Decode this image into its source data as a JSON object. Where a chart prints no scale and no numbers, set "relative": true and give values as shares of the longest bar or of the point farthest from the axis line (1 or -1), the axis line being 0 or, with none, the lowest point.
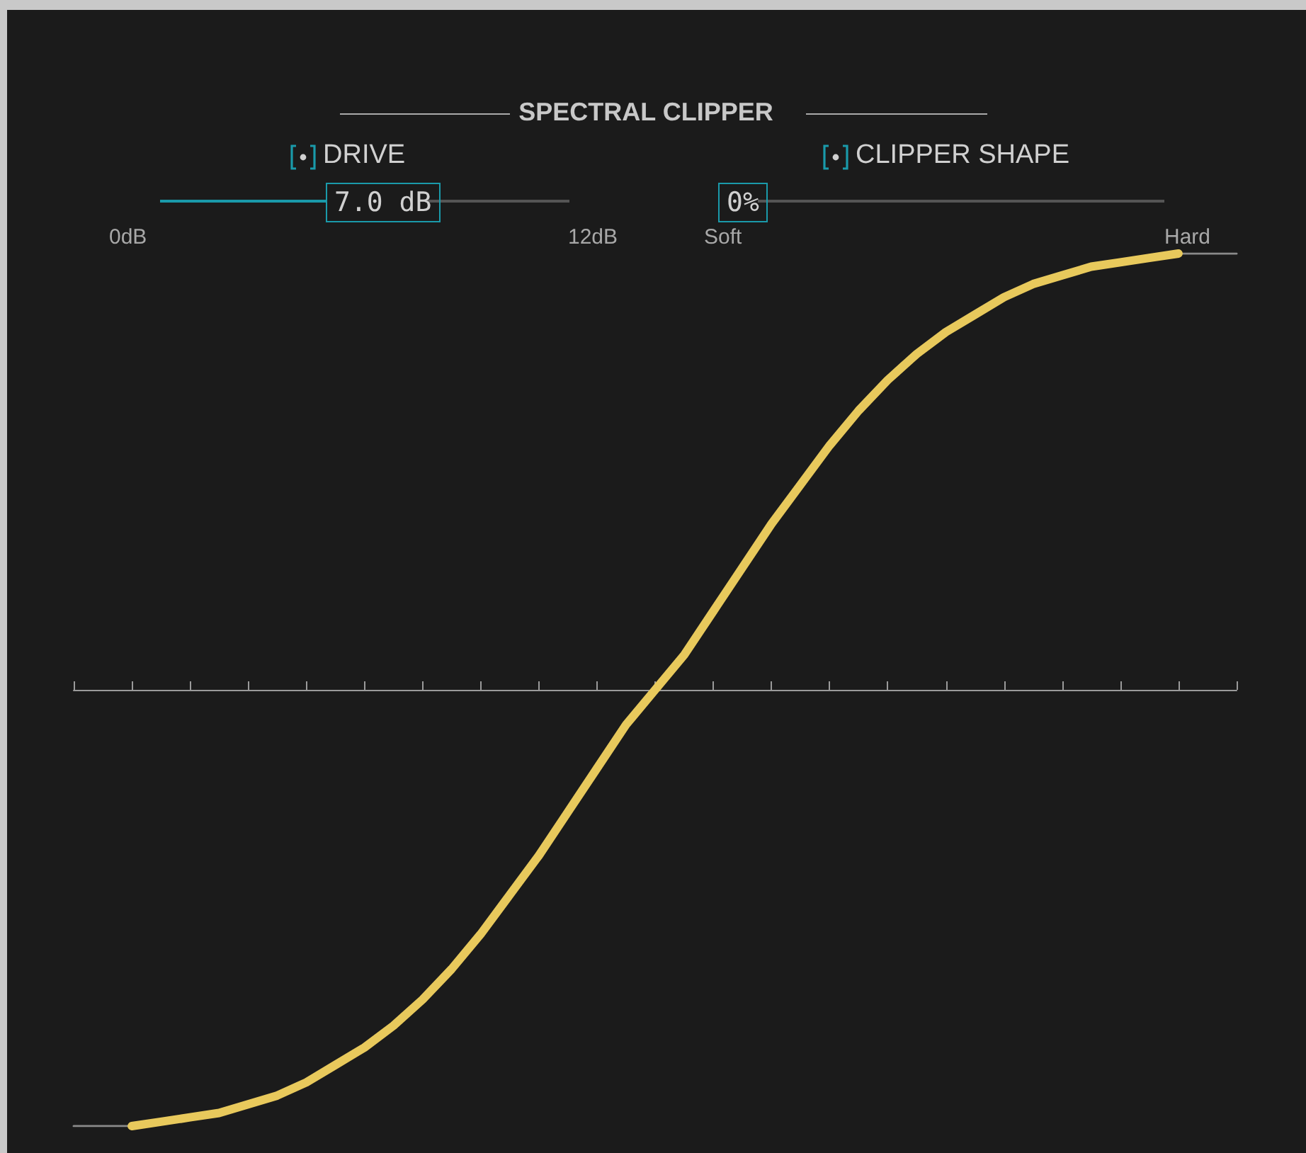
{
  "chart_data": {
    "type": "line",
    "title": "SPECTRAL CLIPPER",
    "relative": true,
    "grid": false,
    "marker": "none",
    "annotations": [
      "DRIVE",
      "7.0 dB",
      "0dB",
      "12dB",
      "CLIPPER SHAPE",
      "0%",
      "Soft",
      "Hard"
    ],
    "categories": [
      null,
      null,
      null,
      null,
      null,
      null,
      null,
      null,
      null,
      null,
      null,
      null,
      null,
      null,
      null,
      null,
      null,
      null,
      null,
      null,
      null,
      null,
      null,
      null,
      null,
      null,
      null,
      null,
      null,
      null,
      null,
      null,
      null,
      null,
      null,
      null,
      null,
      null,
      null,
      null,
      null
    ],
    "series": [
      {
        "color": "#8a8a8a",
        "values": [
          -1,
          -1,
          -1,
          null,
          null,
          null,
          null,
          null,
          null,
          null,
          null,
          null,
          null,
          null,
          null,
          null,
          null,
          null,
          null,
          null,
          null,
          null,
          null,
          null,
          null,
          null,
          null,
          null,
          null,
          null,
          null,
          null,
          null,
          null,
          null,
          null,
          null,
          null,
          1,
          1,
          1
        ]
      },
      {
        "color": "#e8c95c",
        "values": [
          null,
          null,
          -1,
          -0.99,
          -0.98,
          -0.97,
          -0.95,
          -0.93,
          -0.9,
          -0.86,
          -0.82,
          -0.77,
          -0.71,
          -0.64,
          -0.56,
          -0.47,
          -0.38,
          -0.28,
          -0.18,
          -0.08,
          0,
          0.08,
          0.18,
          0.28,
          0.38,
          0.47,
          0.56,
          0.64,
          0.71,
          0.77,
          0.82,
          0.86,
          0.9,
          0.93,
          0.95,
          0.97,
          0.98,
          0.99,
          1,
          null,
          null
        ]
      }
    ]
  }
}
